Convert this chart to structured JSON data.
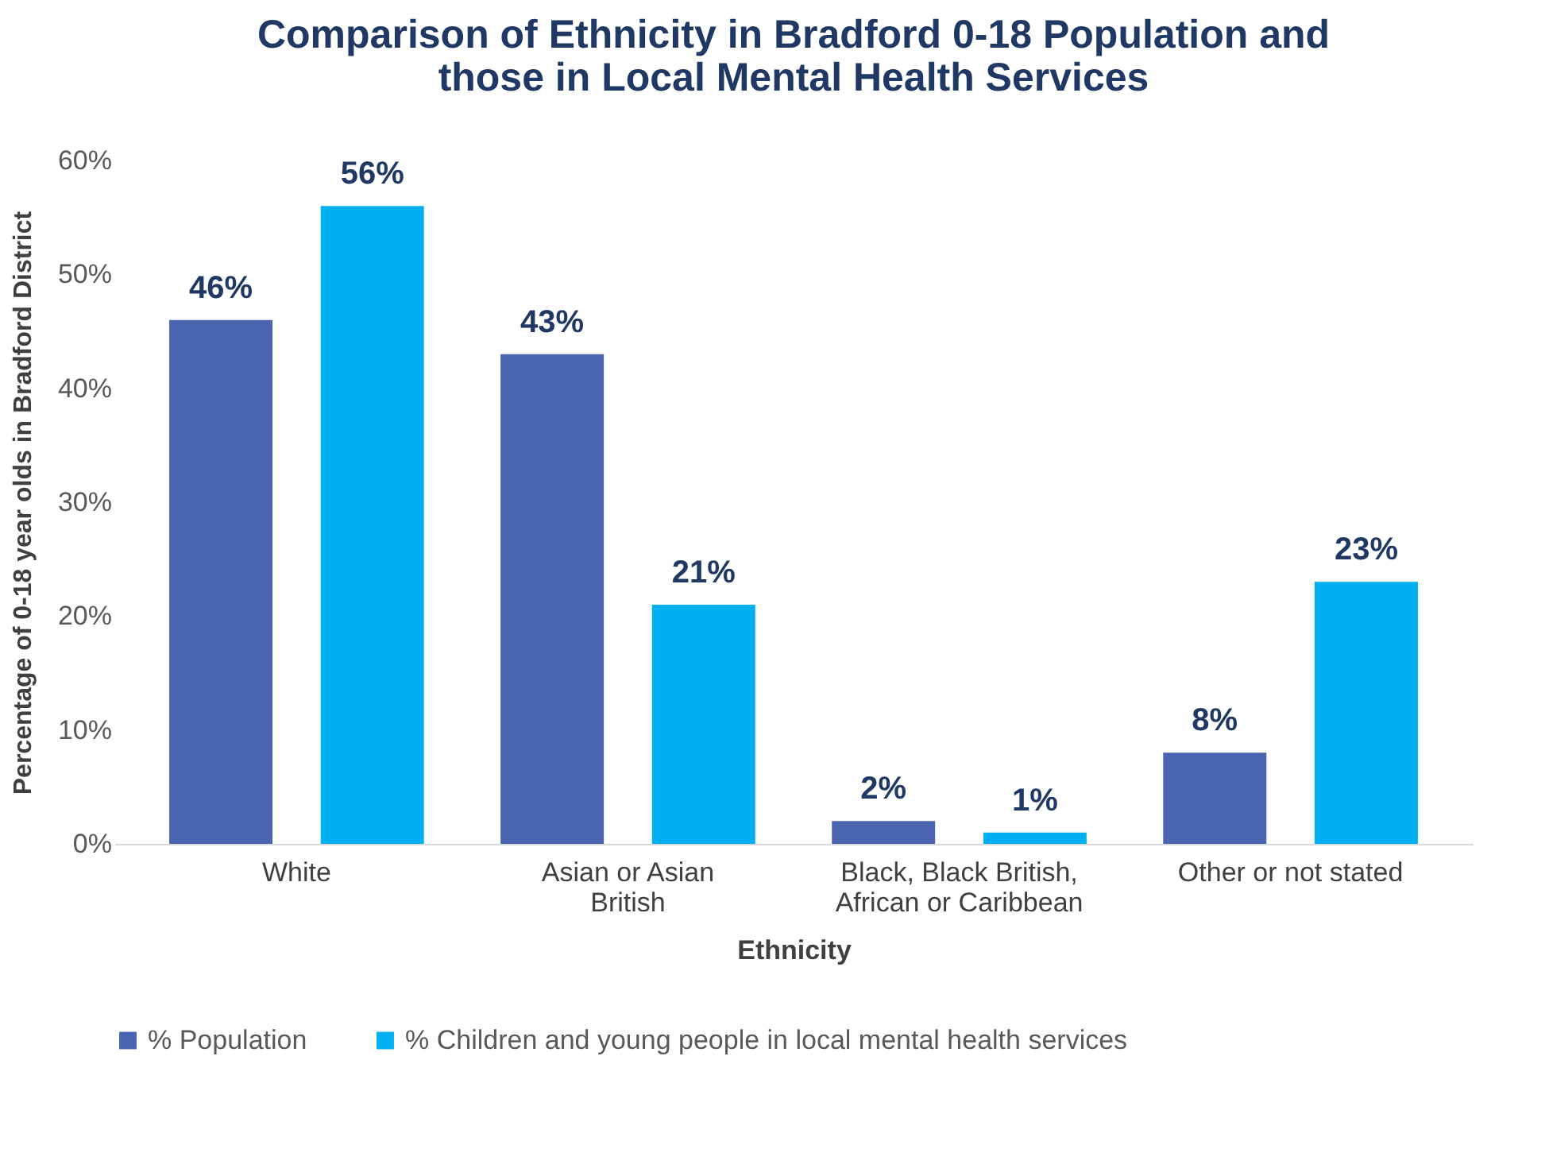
{
  "chart_data": {
    "type": "bar",
    "title": "Comparison of Ethnicity in Bradford 0-18 Population and those in Local Mental Health Services",
    "xlabel": "Ethnicity",
    "ylabel": "Percentage of 0-18 year olds in Bradford District",
    "categories": [
      "White",
      "Asian or Asian British",
      "Black, Black British, African or Caribbean",
      "Other or not stated"
    ],
    "series": [
      {
        "name": "% Population",
        "color": "#4a64b0",
        "values": [
          46,
          43,
          2,
          8
        ],
        "value_labels": [
          "46%",
          "43%",
          "2%",
          "8%"
        ]
      },
      {
        "name": "% Children and young people in local mental health services",
        "color": "#00b0f0",
        "values": [
          56,
          21,
          1,
          23
        ],
        "value_labels": [
          "56%",
          "21%",
          "1%",
          "23%"
        ]
      }
    ],
    "ylim": [
      0,
      60
    ],
    "yticks": [
      {
        "value": 0,
        "label": "0%"
      },
      {
        "value": 10,
        "label": "10%"
      },
      {
        "value": 20,
        "label": "20%"
      },
      {
        "value": 30,
        "label": "30%"
      },
      {
        "value": 40,
        "label": "40%"
      },
      {
        "value": 50,
        "label": "50%"
      },
      {
        "value": 60,
        "label": "60%"
      }
    ],
    "grid": false,
    "legend": "bottom"
  }
}
